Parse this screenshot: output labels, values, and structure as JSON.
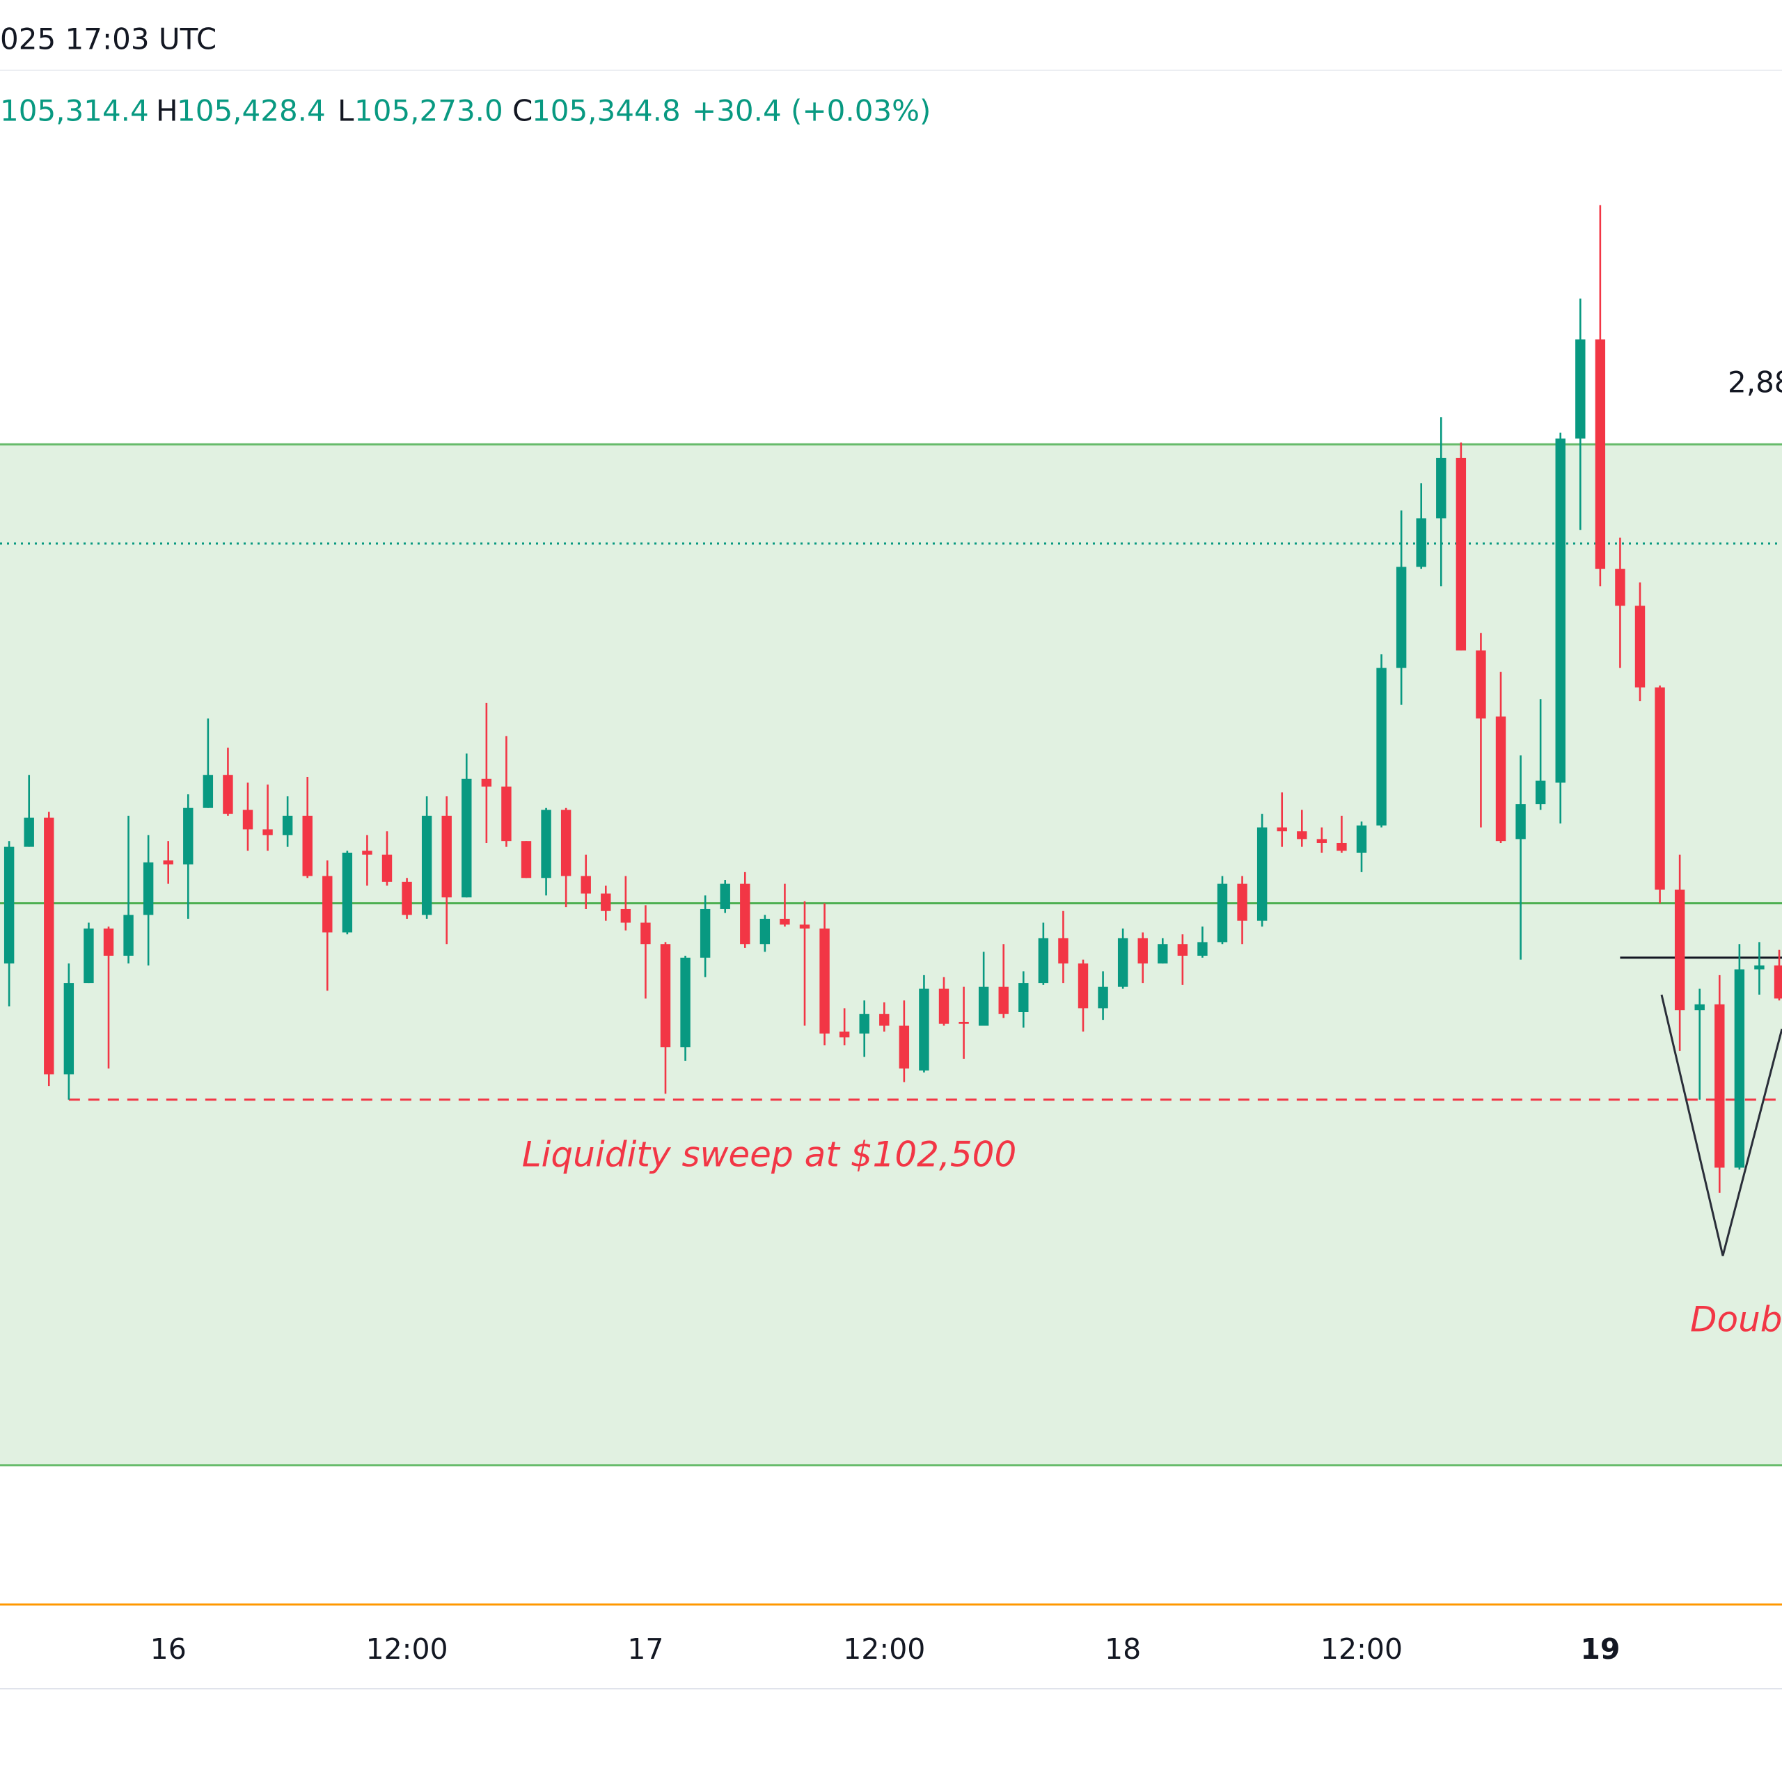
{
  "header": {
    "time": "025 17:03 UTC",
    "open": "105,314.4",
    "high_key": "H",
    "high": "105,428.4",
    "low_key": "L",
    "low": "105,273.0",
    "close_key": "C",
    "close": "105,344.8",
    "change": "+30.4 (+0.03%)"
  },
  "annotations": {
    "measure": "2,88",
    "sweep": "Liquidity sweep at $102,500",
    "pattern": "Doubl"
  },
  "chart_data": {
    "type": "candlestick",
    "up_color": "#089981",
    "down_color": "#f23645",
    "xlim": [
      -8.46,
      81.14
    ],
    "ylim": [
      100000,
      107400
    ],
    "xticks": [
      {
        "value": 0,
        "label": "16"
      },
      {
        "value": 12,
        "label": "12:00"
      },
      {
        "value": 24,
        "label": "17"
      },
      {
        "value": 36,
        "label": "12:00"
      },
      {
        "value": 48,
        "label": "18"
      },
      {
        "value": 60,
        "label": "12:00"
      },
      {
        "value": 72,
        "label": "19",
        "bold": true
      }
    ],
    "zone": {
      "low": 100620,
      "high": 105870,
      "color": "#e1f1e1",
      "edge_color": "#66bb6a"
    },
    "levels": [
      {
        "value": 105360,
        "style": "dotted",
        "color": "#089981"
      },
      {
        "value": 103510,
        "style": "solid",
        "color": "#4caf50"
      },
      {
        "value": 102500,
        "style": "dashed",
        "color": "#f23645",
        "from": -5
      },
      {
        "value": 103230,
        "style": "solid",
        "color": "#131722",
        "from": 73
      }
    ],
    "x": [
      -8,
      -7,
      -6,
      -5,
      -4,
      -3,
      -2,
      -1,
      0,
      1,
      2,
      3,
      4,
      5,
      6,
      7,
      8,
      9,
      10,
      11,
      12,
      13,
      14,
      15,
      16,
      17,
      18,
      19,
      20,
      21,
      22,
      23,
      24,
      25,
      26,
      27,
      28,
      29,
      30,
      31,
      32,
      33,
      34,
      35,
      36,
      37,
      38,
      39,
      40,
      41,
      42,
      43,
      44,
      45,
      46,
      47,
      48,
      49,
      50,
      51,
      52,
      53,
      54,
      55,
      56,
      57,
      58,
      59,
      60,
      61,
      62,
      63,
      64,
      65,
      66,
      67,
      68,
      69,
      70,
      71,
      72,
      73,
      74,
      75,
      76,
      77,
      78,
      79,
      80,
      81
    ],
    "open": [
      103200,
      103800,
      103950,
      102630,
      103100,
      103380,
      103240,
      103450,
      103730,
      103710,
      104000,
      104170,
      103990,
      103890,
      103860,
      103960,
      103650,
      103360,
      103780,
      103760,
      103620,
      103450,
      103960,
      103540,
      104150,
      104110,
      103830,
      103640,
      103990,
      103650,
      103560,
      103480,
      103410,
      103300,
      102770,
      103230,
      103480,
      103610,
      103300,
      103430,
      103400,
      103380,
      102850,
      102840,
      102940,
      102880,
      102650,
      103070,
      102900,
      102880,
      103080,
      102950,
      103100,
      103330,
      103200,
      102970,
      103080,
      103330,
      103200,
      103300,
      103240,
      103310,
      103610,
      103420,
      103900,
      103880,
      103840,
      103820,
      103770,
      103910,
      104720,
      105240,
      105490,
      105800,
      104810,
      104470,
      103840,
      104020,
      104130,
      105900,
      106410,
      105230,
      105040,
      104620,
      103580,
      102960,
      102990,
      102150,
      103170,
      103190
    ],
    "high": [
      103830,
      104170,
      103980,
      103200,
      103410,
      103390,
      103960,
      103860,
      103830,
      104070,
      104460,
      104310,
      104130,
      104120,
      104060,
      104160,
      103730,
      103780,
      103860,
      103880,
      103640,
      104060,
      104060,
      104280,
      104540,
      104370,
      103830,
      104000,
      104000,
      103760,
      103600,
      103650,
      103500,
      103310,
      103240,
      103550,
      103630,
      103670,
      103450,
      103610,
      103520,
      103510,
      102970,
      103010,
      103000,
      103010,
      103140,
      103130,
      103080,
      103260,
      103300,
      103160,
      103410,
      103470,
      103220,
      103160,
      103380,
      103360,
      103330,
      103350,
      103390,
      103650,
      103650,
      103970,
      104080,
      103990,
      103900,
      103960,
      103930,
      104790,
      105530,
      105670,
      106010,
      105880,
      104900,
      104700,
      104270,
      104560,
      105930,
      106620,
      107100,
      105390,
      105160,
      104630,
      103760,
      103070,
      103140,
      103300,
      103310,
      103270
    ],
    "low": [
      102980,
      103800,
      102570,
      102500,
      103100,
      102660,
      103200,
      103190,
      103610,
      103430,
      104000,
      103960,
      103780,
      103780,
      103800,
      103640,
      103060,
      103350,
      103600,
      103600,
      103430,
      103430,
      103300,
      103540,
      103820,
      103800,
      103640,
      103550,
      103490,
      103480,
      103420,
      103370,
      103020,
      102530,
      102700,
      103130,
      103460,
      103280,
      103260,
      103390,
      102880,
      102780,
      102780,
      102720,
      102850,
      102590,
      102640,
      102880,
      102710,
      102880,
      102920,
      102870,
      103090,
      103100,
      102850,
      102910,
      103070,
      103100,
      103200,
      103090,
      103230,
      103300,
      103300,
      103390,
      103800,
      103800,
      103770,
      103770,
      103670,
      103900,
      104530,
      105230,
      105140,
      104810,
      103900,
      103820,
      103220,
      103990,
      103920,
      105430,
      105140,
      104720,
      104550,
      103510,
      102750,
      102500,
      102020,
      102140,
      103040,
      103010
    ],
    "close": [
      103800,
      103950,
      102630,
      103100,
      103380,
      103240,
      103450,
      103720,
      103710,
      104000,
      104170,
      103970,
      103890,
      103860,
      103960,
      103650,
      103360,
      103770,
      103760,
      103620,
      103450,
      103960,
      103540,
      104150,
      104110,
      103830,
      103640,
      103990,
      103650,
      103560,
      103470,
      103410,
      103300,
      102770,
      103230,
      103480,
      103610,
      103300,
      103430,
      103400,
      103380,
      102840,
      102820,
      102940,
      102880,
      102660,
      103070,
      102890,
      102890,
      103080,
      102940,
      103100,
      103330,
      103200,
      102970,
      103080,
      103330,
      103200,
      103300,
      103240,
      103310,
      103610,
      103420,
      103900,
      103880,
      103840,
      103820,
      103780,
      103910,
      104720,
      105240,
      105490,
      105800,
      104810,
      104460,
      103830,
      104020,
      104140,
      105900,
      106410,
      105230,
      105040,
      104620,
      103580,
      102960,
      102990,
      102150,
      103170,
      103190,
      103020
    ]
  }
}
